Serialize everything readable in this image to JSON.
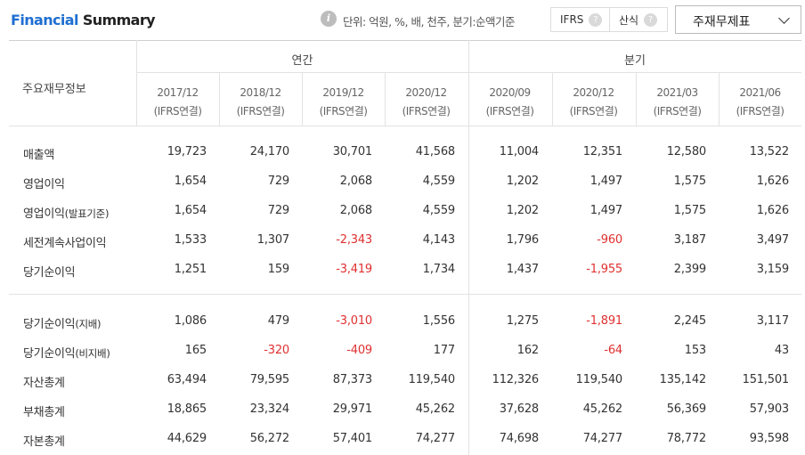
{
  "header": {
    "title_part1": "Financial",
    "title_part2": "Summary",
    "info_icon_glyph": "i",
    "unit_text": "단위: 억원, %, 배, 천주, 분기:순액기준",
    "toggle_ifrs": "IFRS",
    "toggle_calc": "산식",
    "help_glyph": "?",
    "dropdown_label": "주재무제표"
  },
  "table": {
    "row_header_label": "주요재무정보",
    "group_annual": "연간",
    "group_quarter": "분기",
    "columns": [
      {
        "period": "2017/12",
        "basis": "(IFRS연결)"
      },
      {
        "period": "2018/12",
        "basis": "(IFRS연결)"
      },
      {
        "period": "2019/12",
        "basis": "(IFRS연결)"
      },
      {
        "period": "2020/12",
        "basis": "(IFRS연결)"
      },
      {
        "period": "2020/09",
        "basis": "(IFRS연결)"
      },
      {
        "period": "2020/12",
        "basis": "(IFRS연결)"
      },
      {
        "period": "2021/03",
        "basis": "(IFRS연결)"
      },
      {
        "period": "2021/06",
        "basis": "(IFRS연결)"
      }
    ],
    "rows": [
      {
        "label": "매출액",
        "sub": "",
        "values": [
          "19,723",
          "24,170",
          "30,701",
          "41,568",
          "11,004",
          "12,351",
          "12,580",
          "13,522"
        ]
      },
      {
        "label": "영업이익",
        "sub": "",
        "values": [
          "1,654",
          "729",
          "2,068",
          "4,559",
          "1,202",
          "1,497",
          "1,575",
          "1,626"
        ]
      },
      {
        "label": "영업이익",
        "sub": "(발표기준)",
        "values": [
          "1,654",
          "729",
          "2,068",
          "4,559",
          "1,202",
          "1,497",
          "1,575",
          "1,626"
        ]
      },
      {
        "label": "세전계속사업이익",
        "sub": "",
        "values": [
          "1,533",
          "1,307",
          "-2,343",
          "4,143",
          "1,796",
          "-960",
          "3,187",
          "3,497"
        ]
      },
      {
        "label": "당기순이익",
        "sub": "",
        "values": [
          "1,251",
          "159",
          "-3,419",
          "1,734",
          "1,437",
          "-1,955",
          "2,399",
          "3,159"
        ]
      },
      {
        "label": "당기순이익",
        "sub": "(지배)",
        "values": [
          "1,086",
          "479",
          "-3,010",
          "1,556",
          "1,275",
          "-1,891",
          "2,245",
          "3,117"
        ]
      },
      {
        "label": "당기순이익",
        "sub": "(비지배)",
        "values": [
          "165",
          "-320",
          "-409",
          "177",
          "162",
          "-64",
          "153",
          "43"
        ]
      },
      {
        "label": "자산총계",
        "sub": "",
        "values": [
          "63,494",
          "79,595",
          "87,373",
          "119,540",
          "112,326",
          "119,540",
          "135,142",
          "151,501"
        ]
      },
      {
        "label": "부채총계",
        "sub": "",
        "values": [
          "18,865",
          "23,324",
          "29,971",
          "45,262",
          "37,628",
          "45,262",
          "56,369",
          "57,903"
        ]
      },
      {
        "label": "자본총계",
        "sub": "",
        "values": [
          "44,629",
          "56,272",
          "57,401",
          "74,277",
          "74,698",
          "74,277",
          "78,772",
          "93,598"
        ]
      }
    ]
  },
  "colors": {
    "negative": "#e03030",
    "title_accent": "#1f6fd1"
  }
}
